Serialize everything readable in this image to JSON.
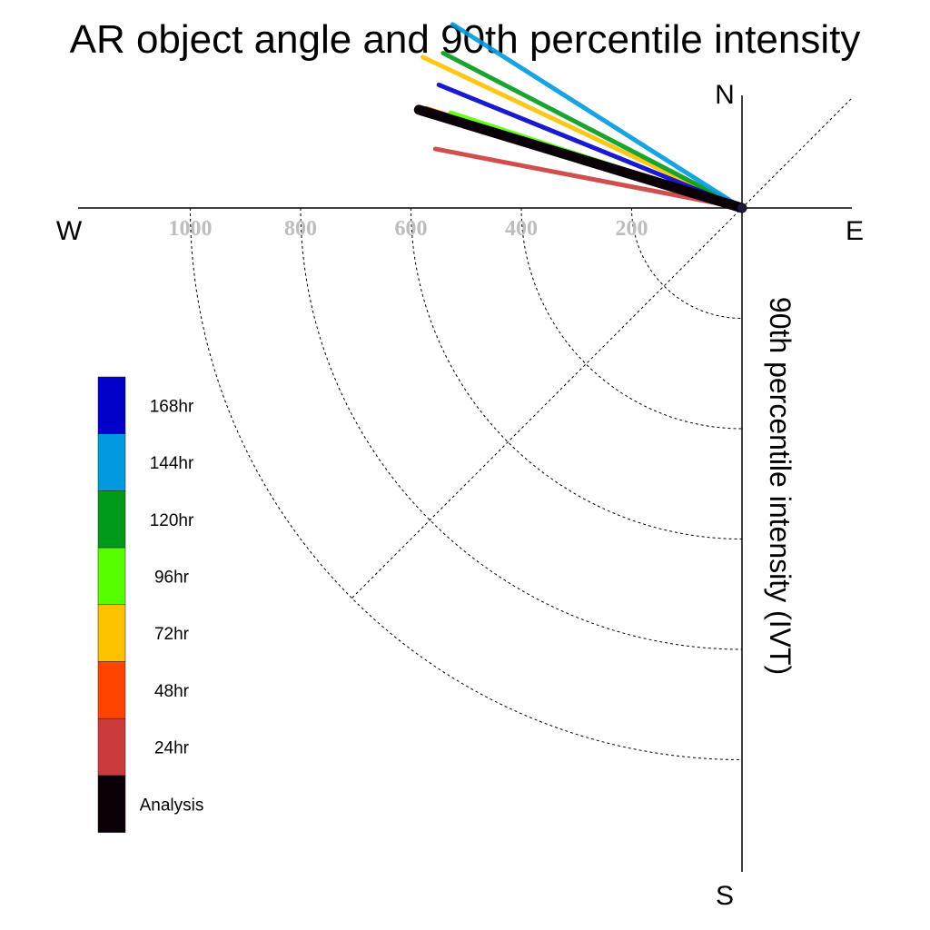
{
  "chart_data": {
    "type": "polar-vector",
    "title": "AR object angle and 90th percentile intensity",
    "ylabel": "90th percentile intensity (IVT)",
    "compass": {
      "north": "N",
      "south": "S",
      "east": "E",
      "west": "W"
    },
    "radial_ticks": [
      200,
      400,
      600,
      800,
      1000
    ],
    "radial_max": 1200,
    "series": [
      {
        "name": "24hr",
        "color": "#cc3b3b",
        "angle_deg": 190.9,
        "intensity": 566
      },
      {
        "name": "48hr",
        "color": "#ff4400",
        "angle_deg": 197.5,
        "intensity": 600
      },
      {
        "name": "72hr",
        "color": "#ffc200",
        "angle_deg": 205.3,
        "intensity": 640
      },
      {
        "name": "96hr",
        "color": "#55ff00",
        "angle_deg": 198.1,
        "intensity": 556
      },
      {
        "name": "120hr",
        "color": "#009a1a",
        "angle_deg": 207.4,
        "intensity": 610
      },
      {
        "name": "144hr",
        "color": "#0099dd",
        "angle_deg": 212.4,
        "intensity": 621
      },
      {
        "name": "168hr",
        "color": "#0000c8",
        "angle_deg": 202.1,
        "intensity": 593
      },
      {
        "name": "Analysis",
        "color": "#0a0008",
        "angle_deg": 196.9,
        "intensity": 612
      }
    ],
    "legend_order": [
      "Analysis",
      "24hr",
      "48hr",
      "72hr",
      "96hr",
      "120hr",
      "144hr",
      "168hr"
    ]
  }
}
